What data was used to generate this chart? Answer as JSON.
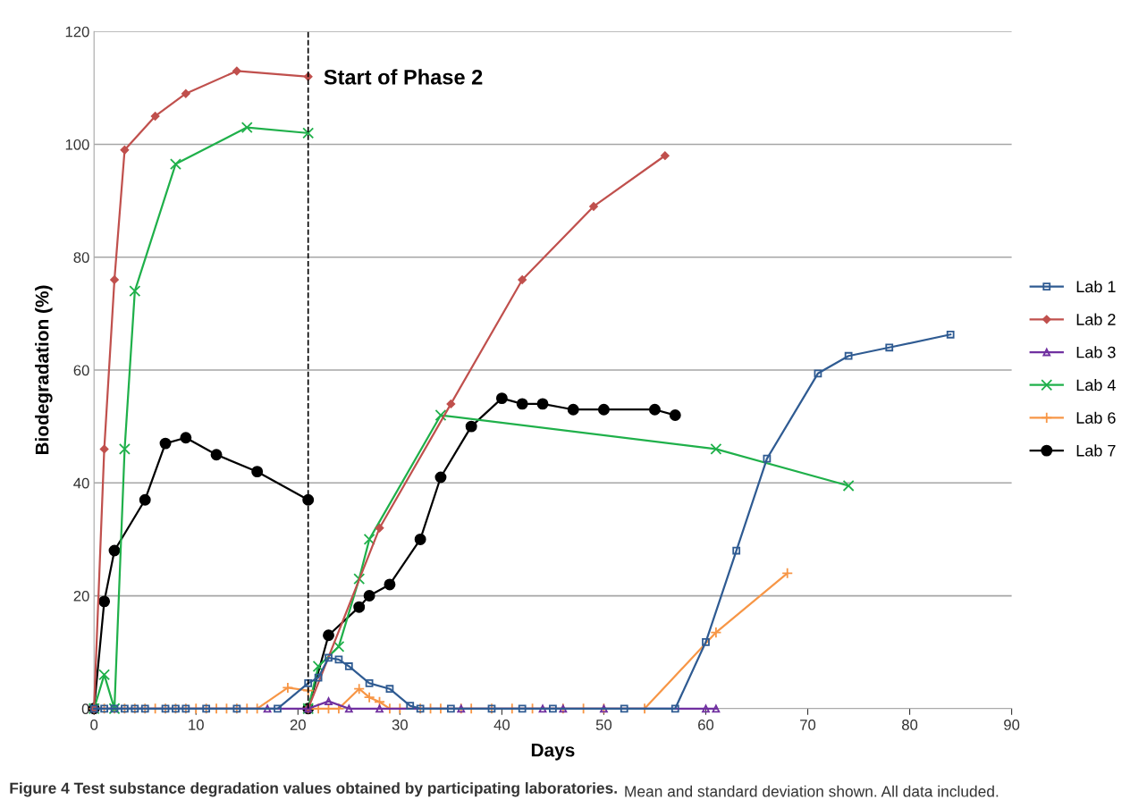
{
  "chart_data": {
    "type": "line",
    "xlabel": "Days",
    "ylabel": "Biodegradation (%)",
    "xlim": [
      0,
      90
    ],
    "xticks": [
      0,
      10,
      20,
      30,
      40,
      50,
      60,
      70,
      80,
      90
    ],
    "ylim": [
      0,
      120
    ],
    "yticks": [
      0,
      20,
      40,
      60,
      80,
      100,
      120
    ],
    "grid": "y",
    "legend": "right",
    "line_style": "solid",
    "ref_lines": [
      {
        "axis": "x",
        "value": 21,
        "label": "Start of Phase 2",
        "color": "#000000",
        "line_style": "dashed"
      }
    ],
    "annotations": [
      "Figure 4 Test substance degradation values obtained by participating laboratories.",
      "Mean and standard deviation shown. All data included."
    ],
    "series": [
      {
        "name": "Lab 1",
        "color": "#2f5b92",
        "marker": "square",
        "x": [
          0,
          1,
          2,
          3,
          4,
          5,
          7,
          8,
          9,
          11,
          14,
          18,
          21,
          22,
          23,
          24,
          25,
          27,
          29,
          31,
          32,
          35,
          39,
          42,
          45,
          52,
          57,
          60,
          63,
          66,
          71,
          74,
          78,
          84
        ],
        "values": [
          0,
          0,
          0,
          0,
          0,
          0,
          0,
          0,
          0,
          0,
          0,
          0,
          4.5,
          5.5,
          9,
          8.7,
          7.5,
          4.5,
          3.5,
          0.5,
          0,
          0,
          0,
          0,
          0,
          0,
          0,
          11.8,
          28,
          44.3,
          59.4,
          62.5,
          64,
          66.3
        ]
      },
      {
        "name": "Lab 2",
        "color": "#c0504d",
        "marker": "diamond",
        "x": [
          0,
          1,
          2,
          3,
          6,
          9,
          14,
          21
        ],
        "values": [
          0,
          46,
          76,
          99,
          105,
          109,
          113,
          112
        ]
      },
      {
        "name": "Lab 3",
        "color": "#7030a0",
        "marker": "triangle",
        "x": [
          0,
          17,
          21,
          23,
          25,
          28,
          36,
          44,
          46,
          50,
          60,
          61
        ],
        "values": [
          0,
          0,
          0,
          1.3,
          0,
          0,
          0,
          0,
          0,
          0,
          0,
          0
        ]
      },
      {
        "name": "Lab 4",
        "color": "#1fb04a",
        "marker": "cross",
        "x": [
          0,
          1,
          2,
          3,
          4,
          8,
          15,
          21
        ],
        "values": [
          0,
          6,
          0,
          46,
          74,
          96.5,
          103,
          102
        ]
      },
      {
        "name": "Lab 6",
        "color": "#f79646",
        "marker": "plus",
        "x": [
          0,
          1,
          2,
          3,
          4,
          5,
          6,
          7,
          8,
          9,
          10,
          11,
          12,
          13,
          14,
          15,
          16,
          19,
          21
        ],
        "values": [
          0,
          0,
          0,
          0,
          0,
          0,
          0,
          0,
          0,
          0,
          0,
          0,
          0,
          0,
          0,
          0,
          0,
          3.7,
          3.2
        ]
      },
      {
        "name": "Lab 7",
        "color": "#000000",
        "marker": "circle",
        "x": [
          0,
          1,
          2,
          5,
          7,
          9,
          12,
          16,
          21
        ],
        "values": [
          0,
          19,
          28,
          37,
          47,
          48,
          45,
          42,
          37
        ]
      },
      {
        "color": "#c0504d",
        "marker": "diamond",
        "x": [
          21,
          28,
          35,
          42,
          49,
          56
        ],
        "values": [
          0,
          32,
          54,
          76,
          89,
          98
        ]
      },
      {
        "color": "#1fb04a",
        "marker": "cross",
        "x": [
          21,
          22,
          24,
          26,
          27,
          34,
          61,
          74
        ],
        "values": [
          0,
          7.5,
          11,
          23,
          30,
          52,
          46,
          39.5
        ]
      },
      {
        "color": "#f79646",
        "marker": "plus",
        "x": [
          21,
          22,
          23,
          24,
          26,
          27,
          28,
          29,
          30,
          32,
          33,
          34,
          36,
          37,
          39,
          41,
          43,
          46,
          48,
          50,
          54,
          61,
          68
        ],
        "values": [
          0,
          0,
          0,
          0,
          3.5,
          2,
          1.2,
          0,
          0,
          0,
          0,
          0,
          0,
          0,
          0,
          0,
          0,
          0,
          0,
          0,
          0,
          13.5,
          24
        ]
      },
      {
        "color": "#000000",
        "marker": "circle",
        "x": [
          21,
          23,
          26,
          27,
          29,
          32,
          34,
          37,
          40,
          42,
          44,
          47,
          50,
          55,
          57
        ],
        "values": [
          0,
          13,
          18,
          20,
          22,
          30,
          41,
          50,
          55,
          54,
          54,
          53,
          53,
          53,
          52
        ]
      }
    ]
  }
}
